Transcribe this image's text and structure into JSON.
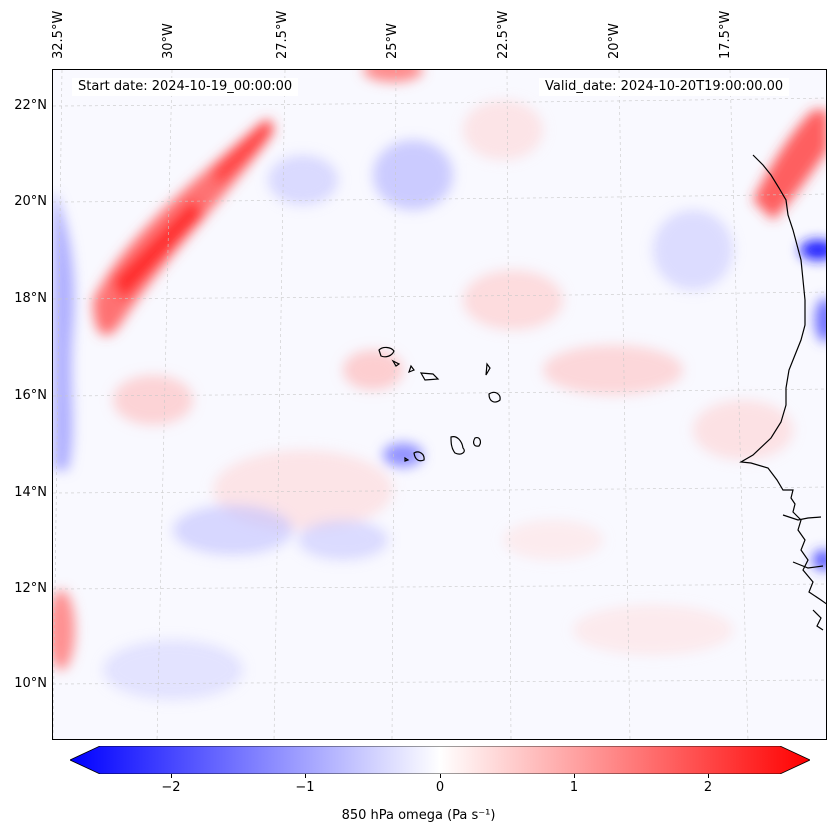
{
  "map": {
    "start_date_text": "Start date: 2024-10-19_00:00:00",
    "valid_date_text": "Valid_date: 2024-10-20T19:00:00.00",
    "longitude_labels": [
      "32.5°W",
      "30°W",
      "27.5°W",
      "25°W",
      "22.5°W",
      "20°W",
      "17.5°W"
    ],
    "latitude_labels": [
      "22°N",
      "20°N",
      "18°N",
      "16°N",
      "14°N",
      "12°N",
      "10°N"
    ],
    "field": "850 hPa omega",
    "colors": {
      "negative": "#0000ff",
      "neutral": "#ffffff",
      "positive": "#ff0000",
      "coast": "#000000"
    }
  },
  "colorbar": {
    "label": "850 hPa omega (Pa s⁻¹)",
    "ticks": [
      "−2",
      "−1",
      "0",
      "1",
      "2"
    ],
    "range": [
      -2.75,
      2.75
    ]
  }
}
